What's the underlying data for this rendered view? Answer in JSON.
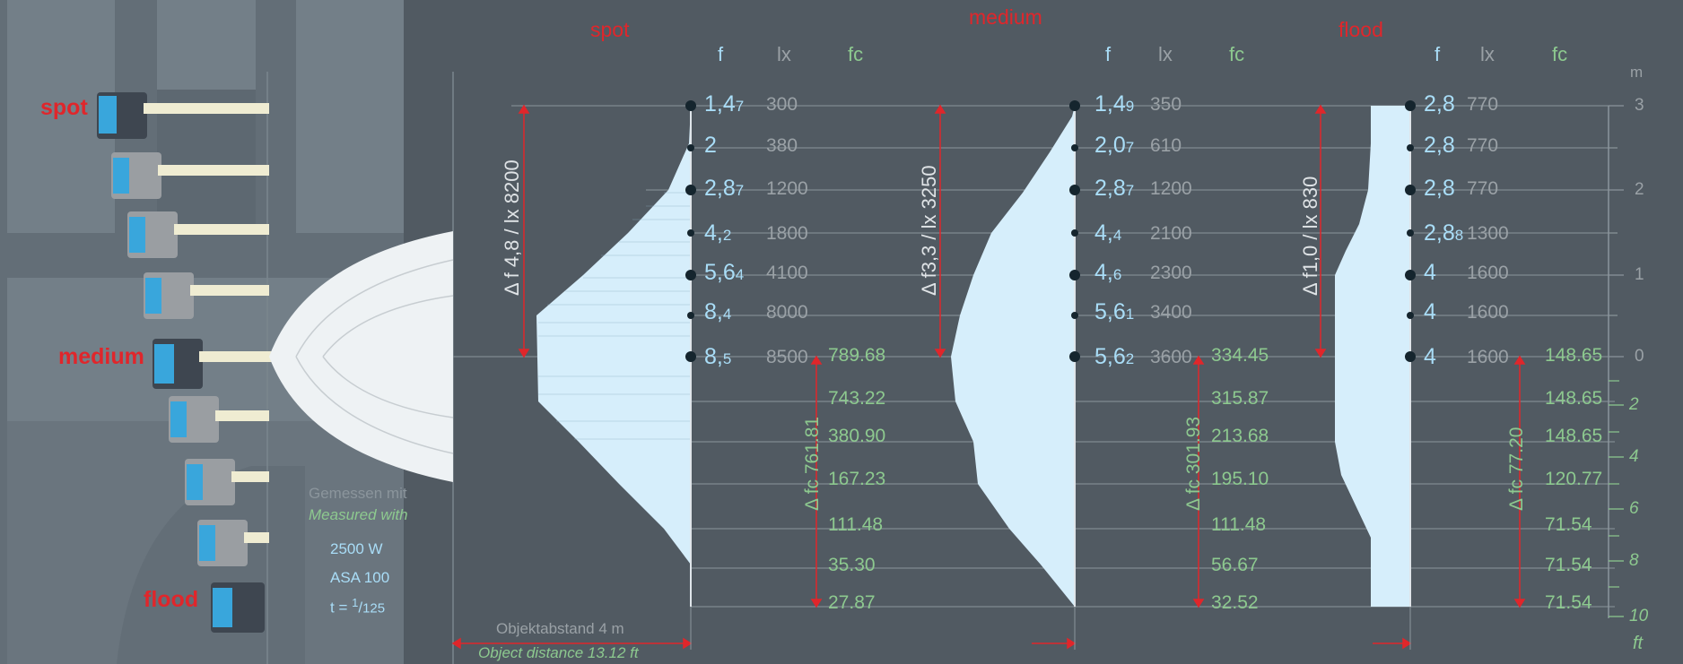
{
  "colors": {
    "background": "#515a62",
    "accent": "#e0262b",
    "f_value": "#a9ddf7",
    "lux": "#9aa1a6",
    "fc": "#8dc98f",
    "beam_fill": "#d6eefb"
  },
  "lamp_labels": {
    "spot": "spot",
    "medium": "medium",
    "flood": "flood"
  },
  "measurement": {
    "measured_de": "Gemessen mit",
    "measured_en": "Measured with",
    "power": "2500 W",
    "asa": "ASA 100",
    "shutter_prefix": "t = ",
    "shutter_num": "1",
    "shutter_den": "125"
  },
  "object_distance": {
    "de": "Objektabstand 4 m",
    "en": "Object distance 13.12 ft"
  },
  "columns": {
    "f": "f",
    "lx": "lx",
    "fc": "fc"
  },
  "axis": {
    "m_unit": "m",
    "ft_unit": "ft",
    "m_ticks": [
      "3",
      "2",
      "1",
      "0"
    ],
    "ft_ticks": [
      "2",
      "4",
      "6",
      "8",
      "10"
    ]
  },
  "panels": [
    {
      "title": "spot",
      "rows": [
        {
          "f_main": "1,4",
          "f_sub": "7",
          "lx": "300"
        },
        {
          "f_main": "2",
          "f_sub": "",
          "lx": "380"
        },
        {
          "f_main": "2,8",
          "f_sub": "7",
          "lx": "1200"
        },
        {
          "f_main": "4,",
          "f_sub": "2",
          "lx": "1800"
        },
        {
          "f_main": "5,6",
          "f_sub": "4",
          "lx": "4100"
        },
        {
          "f_main": "8,",
          "f_sub": "4",
          "lx": "8000"
        },
        {
          "f_main": "8,",
          "f_sub": "5",
          "lx": "8500"
        }
      ],
      "fc_values": [
        "789.68",
        "743.22",
        "380.90",
        "167.23",
        "111.48",
        "35.30",
        "27.87"
      ],
      "delta_f_label": "Δ f 4,8 / lx 8200",
      "delta_fc_label": "Δ fc 761.81"
    },
    {
      "title": "medium",
      "rows": [
        {
          "f_main": "1,4",
          "f_sub": "9",
          "lx": "350"
        },
        {
          "f_main": "2,0",
          "f_sub": "7",
          "lx": "610"
        },
        {
          "f_main": "2,8",
          "f_sub": "7",
          "lx": "1200"
        },
        {
          "f_main": "4,",
          "f_sub": "4",
          "lx": "2100"
        },
        {
          "f_main": "4,",
          "f_sub": "6",
          "lx": "2300"
        },
        {
          "f_main": "5,6",
          "f_sub": "1",
          "lx": "3400"
        },
        {
          "f_main": "5,6",
          "f_sub": "2",
          "lx": "3600"
        }
      ],
      "fc_values": [
        "334.45",
        "315.87",
        "213.68",
        "195.10",
        "111.48",
        "56.67",
        "32.52"
      ],
      "delta_f_label": "Δ f3,3 / lx 3250",
      "delta_fc_label": "Δ fc 301.93"
    },
    {
      "title": "flood",
      "rows": [
        {
          "f_main": "2,8",
          "f_sub": "",
          "lx": "770"
        },
        {
          "f_main": "2,8",
          "f_sub": "",
          "lx": "770"
        },
        {
          "f_main": "2,8",
          "f_sub": "",
          "lx": "770"
        },
        {
          "f_main": "2,8",
          "f_sub": "8",
          "lx": "1300"
        },
        {
          "f_main": "4",
          "f_sub": "",
          "lx": "1600"
        },
        {
          "f_main": "4",
          "f_sub": "",
          "lx": "1600"
        },
        {
          "f_main": "4",
          "f_sub": "",
          "lx": "1600"
        }
      ],
      "fc_values": [
        "148.65",
        "148.65",
        "148.65",
        "120.77",
        "71.54",
        "71.54",
        "71.54"
      ],
      "delta_f_label": "Δ f1,0 / lx 830",
      "delta_fc_label": "Δ fc 77.20"
    }
  ]
}
